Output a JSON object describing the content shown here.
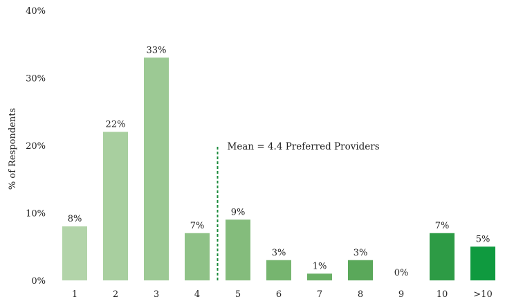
{
  "chart_data": {
    "type": "bar",
    "ylabel": "% of Respondents",
    "xlabel": "",
    "ylim": [
      0,
      40
    ],
    "y_ticks": [
      0,
      10,
      20,
      30,
      40
    ],
    "y_tick_labels": [
      "0%",
      "10%",
      "20%",
      "30%",
      "40%"
    ],
    "grid": false,
    "categories": [
      "1",
      "2",
      "3",
      "4",
      "5",
      "6",
      "7",
      "8",
      "9",
      "10",
      ">10"
    ],
    "values": [
      8,
      22,
      33,
      7,
      9,
      3,
      1,
      3,
      0,
      7,
      5
    ],
    "data_labels": [
      "8%",
      "22%",
      "33%",
      "7%",
      "9%",
      "3%",
      "1%",
      "3%",
      "0%",
      "7%",
      "5%"
    ],
    "colors": [
      "#b2d4a9",
      "#a8cf9f",
      "#9cc994",
      "#8fc287",
      "#84bc7c",
      "#76b56f",
      "#69af65",
      "#5aa85a",
      "#4ea350",
      "#2d9b45",
      "#0f9a3f"
    ],
    "annotation": {
      "text": "Mean = 4.4 Preferred Providers",
      "x_value": 4.4,
      "line_color": "#1a8a3a"
    }
  }
}
